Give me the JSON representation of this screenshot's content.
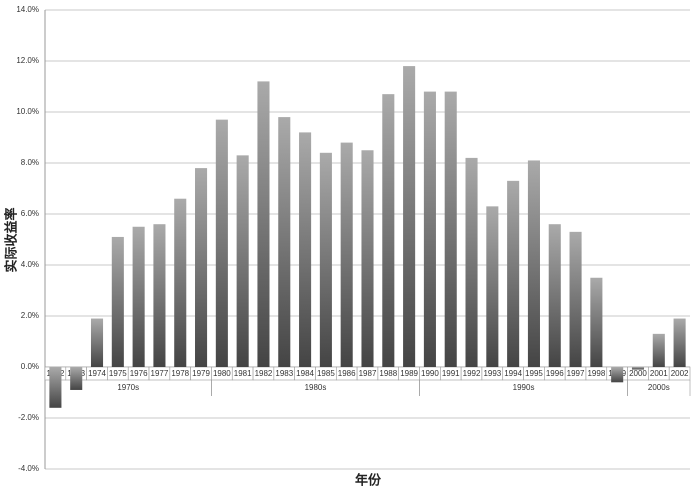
{
  "chart_data": {
    "type": "bar",
    "x_label": "年份",
    "y_label": "实际收益率",
    "categories": [
      "1972",
      "1973",
      "1974",
      "1975",
      "1976",
      "1977",
      "1978",
      "1979",
      "1980",
      "1981",
      "1982",
      "1983",
      "1984",
      "1985",
      "1986",
      "1987",
      "1988",
      "1989",
      "1990",
      "1991",
      "1992",
      "1993",
      "1994",
      "1995",
      "1996",
      "1997",
      "1998",
      "1999",
      "2000",
      "2001",
      "2002"
    ],
    "groups": [
      "1970s",
      "1980s",
      "1990s",
      "2000s"
    ],
    "values": [
      -1.6,
      -0.9,
      1.9,
      5.1,
      5.5,
      5.6,
      6.6,
      7.8,
      9.7,
      8.3,
      11.2,
      9.8,
      9.2,
      8.4,
      8.8,
      8.5,
      10.7,
      11.8,
      10.8,
      10.8,
      8.2,
      6.3,
      7.3,
      8.1,
      5.6,
      5.3,
      3.5,
      -0.6,
      -0.1,
      1.3,
      1.9
    ],
    "color": "#777777",
    "ylim": [
      -4,
      14
    ],
    "yticks": [
      {
        "value": -4,
        "label": "-4.0%"
      },
      {
        "value": -2,
        "label": "-2.0%"
      },
      {
        "value": 0,
        "label": "0.0%"
      },
      {
        "value": 2,
        "label": "2.0%"
      },
      {
        "value": 4,
        "label": "4.0%"
      },
      {
        "value": 6,
        "label": "6.0%"
      },
      {
        "value": 8,
        "label": "8.0%"
      },
      {
        "value": 10,
        "label": "10.0%"
      },
      {
        "value": 12,
        "label": "12.0%"
      },
      {
        "value": 14,
        "label": "14.0%"
      }
    ],
    "grid": true
  }
}
